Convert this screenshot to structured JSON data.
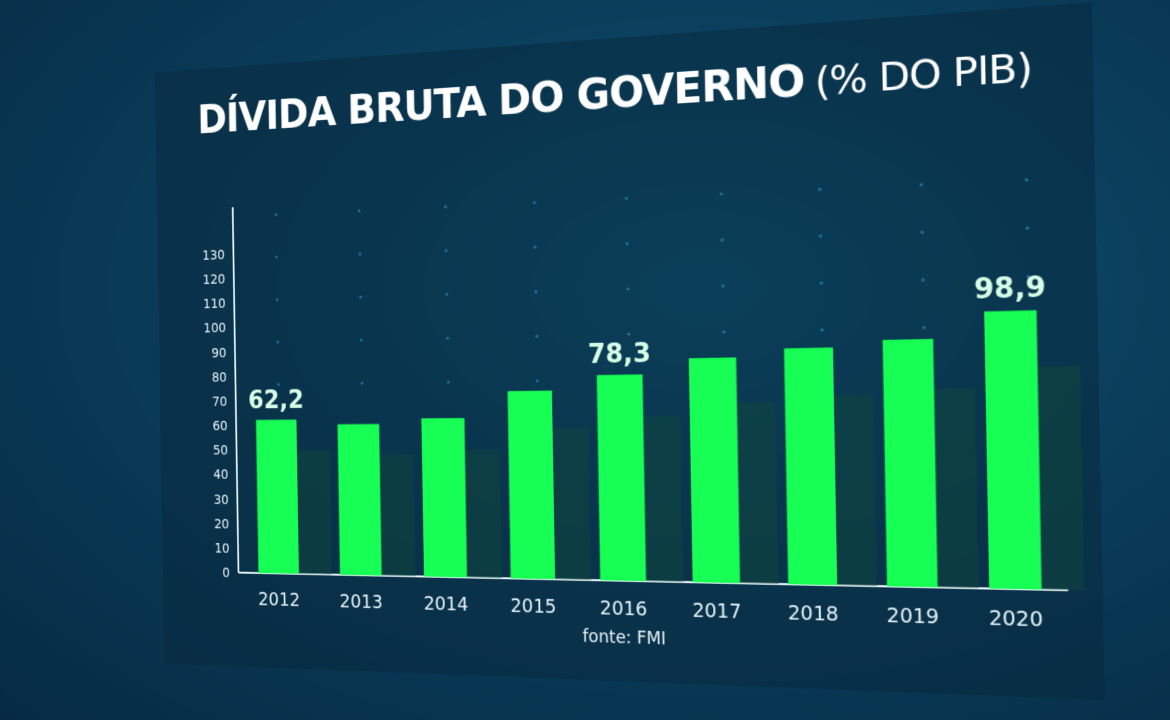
{
  "chart_data": {
    "type": "bar",
    "title": "DÍVIDA BRUTA DO GOVERNO",
    "subtitle": "(% DO PIB)",
    "source": "fonte: FMI",
    "categories": [
      "2012",
      "2013",
      "2014",
      "2015",
      "2016",
      "2017",
      "2018",
      "2019",
      "2020"
    ],
    "values": [
      62.2,
      60.2,
      62.3,
      72.6,
      78.3,
      84.1,
      87.1,
      89.5,
      98.9
    ],
    "data_labels": {
      "2012": "62,2",
      "2016": "78,3",
      "2020": "98,9"
    },
    "ylim": [
      0,
      130
    ],
    "yticks": [
      "0",
      "10",
      "20",
      "30",
      "40",
      "50",
      "60",
      "70",
      "80",
      "90",
      "100",
      "110",
      "120",
      "130"
    ],
    "bar_color": "#17ff55",
    "label_color": "#d8ffe6",
    "grid": false
  }
}
